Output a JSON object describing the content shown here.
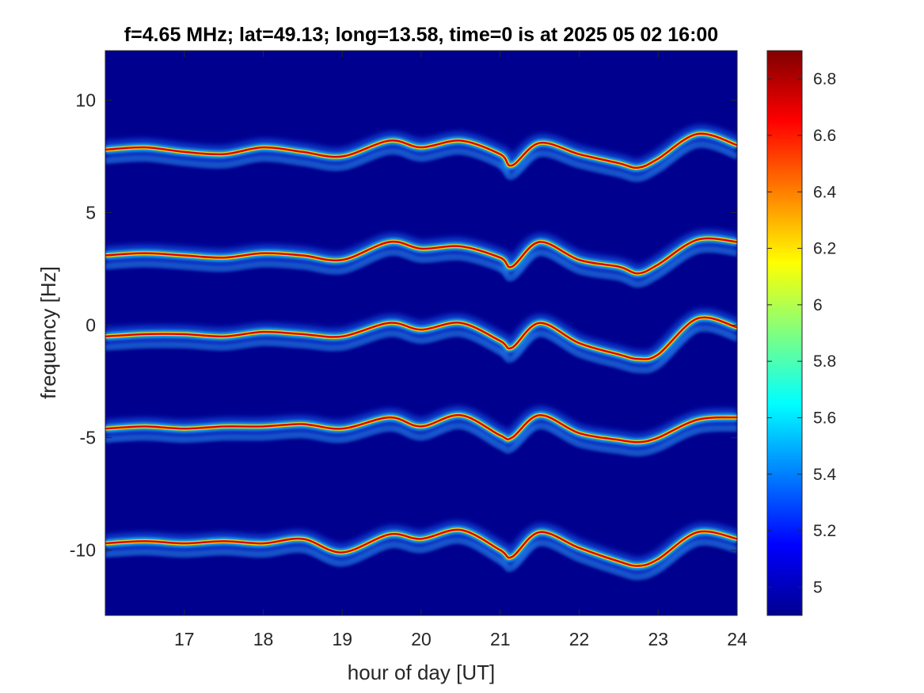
{
  "chart_data": {
    "type": "heatmap",
    "title": "f=4.65 MHz;  lat=49.13; long=13.58, time=0 is at 2025 05 02 16:00",
    "xlabel": "hour of day [UT]",
    "ylabel": "frequency [Hz]",
    "xlim": [
      16,
      24
    ],
    "ylim": [
      -12.9,
      12.2
    ],
    "x_ticks": [
      17,
      18,
      19,
      20,
      21,
      22,
      23,
      24
    ],
    "x_tick_labels": [
      "17",
      "18",
      "19",
      "20",
      "21",
      "22",
      "23",
      "24"
    ],
    "y_ticks": [
      10,
      5,
      0,
      -5,
      -10
    ],
    "y_tick_labels": [
      "10",
      "5",
      "0",
      "-5",
      "-10"
    ],
    "colormap": "jet",
    "background_color": "#00008f",
    "colorbar": {
      "range": [
        4.9,
        6.9
      ],
      "ticks": [
        6.8,
        6.6,
        6.4,
        6.2,
        6,
        5.8,
        5.6,
        5.4,
        5.2,
        5
      ],
      "tick_labels": [
        "6.8",
        "6.6",
        "6.4",
        "6.2",
        "6",
        "5.8",
        "5.6",
        "5.4",
        "5.2",
        "5"
      ]
    },
    "grid": false,
    "trace_hours": [
      16,
      16.5,
      17,
      17.5,
      18,
      18.5,
      19,
      19.6,
      20,
      20.5,
      21,
      21.15,
      21.5,
      22,
      22.5,
      22.75,
      23,
      23.5,
      24
    ],
    "series": [
      {
        "values": [
          7.8,
          7.9,
          7.7,
          7.6,
          7.9,
          7.7,
          7.5,
          8.2,
          7.9,
          8.2,
          7.6,
          7.1,
          8.1,
          7.6,
          7.2,
          7.0,
          7.4,
          8.5,
          8.0
        ]
      },
      {
        "values": [
          3.1,
          3.2,
          3.1,
          3.0,
          3.2,
          3.1,
          2.9,
          3.7,
          3.4,
          3.5,
          3.0,
          2.6,
          3.7,
          2.9,
          2.6,
          2.3,
          2.7,
          3.8,
          3.7
        ]
      },
      {
        "values": [
          -0.5,
          -0.4,
          -0.4,
          -0.5,
          -0.3,
          -0.4,
          -0.5,
          0.1,
          -0.2,
          0.1,
          -0.7,
          -1.0,
          0.1,
          -0.8,
          -1.3,
          -1.5,
          -1.3,
          0.3,
          -0.1
        ]
      },
      {
        "values": [
          -4.6,
          -4.5,
          -4.6,
          -4.5,
          -4.5,
          -4.4,
          -4.6,
          -4.1,
          -4.5,
          -4.0,
          -4.9,
          -5.0,
          -4.0,
          -4.8,
          -5.1,
          -5.2,
          -5.0,
          -4.2,
          -4.1
        ]
      },
      {
        "values": [
          -9.7,
          -9.6,
          -9.7,
          -9.6,
          -9.7,
          -9.5,
          -10.1,
          -9.3,
          -9.5,
          -9.1,
          -10.0,
          -10.3,
          -9.2,
          -9.9,
          -10.5,
          -10.7,
          -10.4,
          -9.2,
          -9.5
        ]
      }
    ]
  }
}
